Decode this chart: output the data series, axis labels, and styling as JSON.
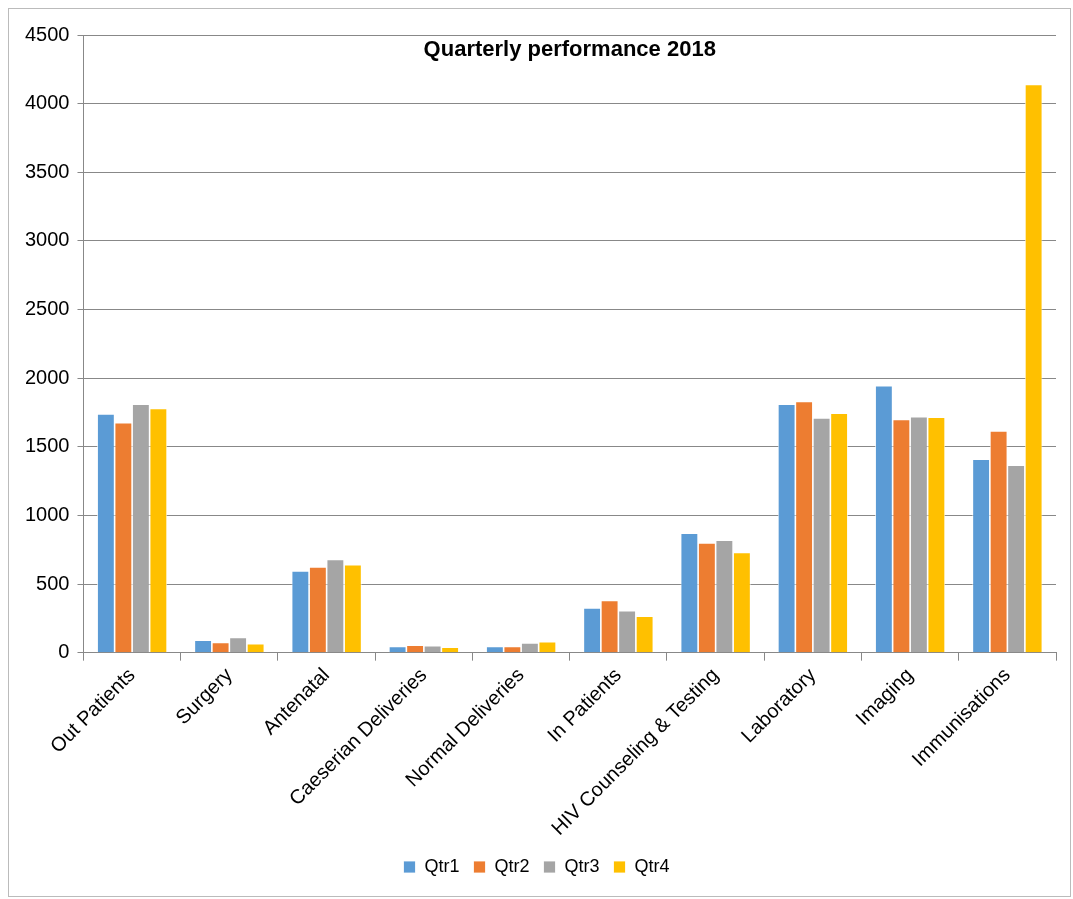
{
  "chart_data": {
    "type": "bar",
    "title": "Quarterly performance 2018",
    "categories": [
      "Out Patients",
      "Surgery",
      "Antenatal",
      "Caeserian Deliveries",
      "Normal Deliveries",
      "In Patients",
      "HIV Counseling & Testing",
      "Laboratory",
      "Imaging",
      "Immunisations"
    ],
    "series": [
      {
        "name": "Qtr1",
        "color": "#5b9bd5",
        "values": [
          1740,
          90,
          595,
          45,
          45,
          325,
          870,
          1810,
          1945,
          1410
        ]
      },
      {
        "name": "Qtr2",
        "color": "#ed7d31",
        "values": [
          1675,
          75,
          625,
          55,
          45,
          380,
          800,
          1830,
          1700,
          1615
        ]
      },
      {
        "name": "Qtr3",
        "color": "#a5a5a5",
        "values": [
          1810,
          110,
          680,
          50,
          70,
          305,
          820,
          1710,
          1720,
          1365
        ]
      },
      {
        "name": "Qtr4",
        "color": "#ffc000",
        "values": [
          1780,
          65,
          640,
          40,
          80,
          265,
          730,
          1745,
          1715,
          4140
        ]
      }
    ],
    "ylim": [
      0,
      4500
    ],
    "yticks": [
      0,
      500,
      1000,
      1500,
      2000,
      2500,
      3000,
      3500,
      4000,
      4500
    ],
    "grid": "y",
    "legend": "bottom"
  }
}
